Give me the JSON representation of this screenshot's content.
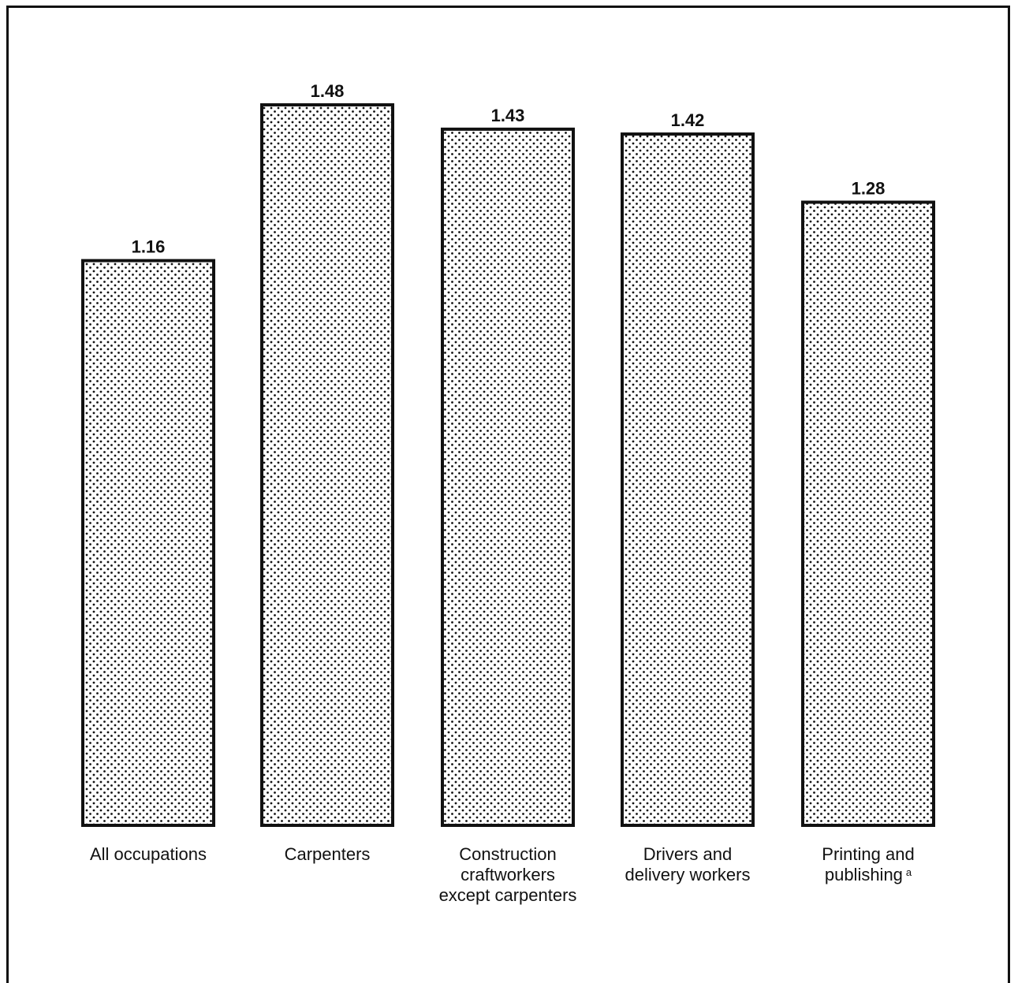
{
  "chart_data": {
    "type": "bar",
    "categories": [
      {
        "lines": [
          "All occupations"
        ],
        "footnote": ""
      },
      {
        "lines": [
          "Carpenters"
        ],
        "footnote": ""
      },
      {
        "lines": [
          "Construction",
          "craftworkers",
          "except carpenters"
        ],
        "footnote": ""
      },
      {
        "lines": [
          "Drivers and",
          "delivery workers"
        ],
        "footnote": ""
      },
      {
        "lines": [
          "Printing and",
          "publishing"
        ],
        "footnote": "a"
      }
    ],
    "values": [
      1.16,
      1.48,
      1.43,
      1.42,
      1.28
    ],
    "value_labels": [
      "1.16",
      "1.48",
      "1.43",
      "1.42",
      "1.28"
    ],
    "ylim": [
      0,
      1.48
    ],
    "fill_pattern": "stipple",
    "colors": {
      "ink": "#111111",
      "background": "#ffffff"
    }
  }
}
